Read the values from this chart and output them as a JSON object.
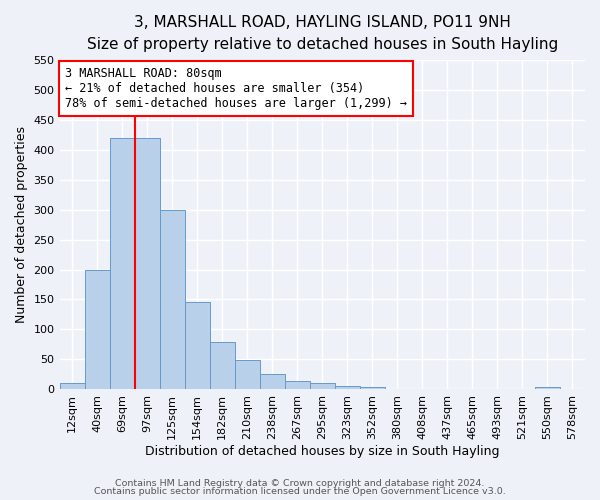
{
  "title": "3, MARSHALL ROAD, HAYLING ISLAND, PO11 9NH",
  "subtitle": "Size of property relative to detached houses in South Hayling",
  "xlabel": "Distribution of detached houses by size in South Hayling",
  "ylabel": "Number of detached properties",
  "bar_labels": [
    "12sqm",
    "40sqm",
    "69sqm",
    "97sqm",
    "125sqm",
    "154sqm",
    "182sqm",
    "210sqm",
    "238sqm",
    "267sqm",
    "295sqm",
    "323sqm",
    "352sqm",
    "380sqm",
    "408sqm",
    "437sqm",
    "465sqm",
    "493sqm",
    "521sqm",
    "550sqm",
    "578sqm"
  ],
  "bar_values": [
    10,
    200,
    420,
    420,
    300,
    145,
    78,
    48,
    25,
    13,
    10,
    5,
    4,
    0,
    0,
    0,
    0,
    0,
    0,
    4,
    0
  ],
  "bar_color": "#b8d0ea",
  "bar_edge_color": "#6699cc",
  "red_line_x": 2.5,
  "ylim": [
    0,
    550
  ],
  "yticks": [
    0,
    50,
    100,
    150,
    200,
    250,
    300,
    350,
    400,
    450,
    500,
    550
  ],
  "annotation_title": "3 MARSHALL ROAD: 80sqm",
  "annotation_line1": "← 21% of detached houses are smaller (354)",
  "annotation_line2": "78% of semi-detached houses are larger (1,299) →",
  "footer1": "Contains HM Land Registry data © Crown copyright and database right 2024.",
  "footer2": "Contains public sector information licensed under the Open Government Licence v3.0.",
  "background_color": "#eef2f8",
  "grid_color": "#ffffff",
  "title_fontsize": 11,
  "subtitle_fontsize": 9,
  "xlabel_fontsize": 9,
  "ylabel_fontsize": 9,
  "tick_fontsize": 8,
  "ann_fontsize": 8.5,
  "footer_fontsize": 6.8
}
